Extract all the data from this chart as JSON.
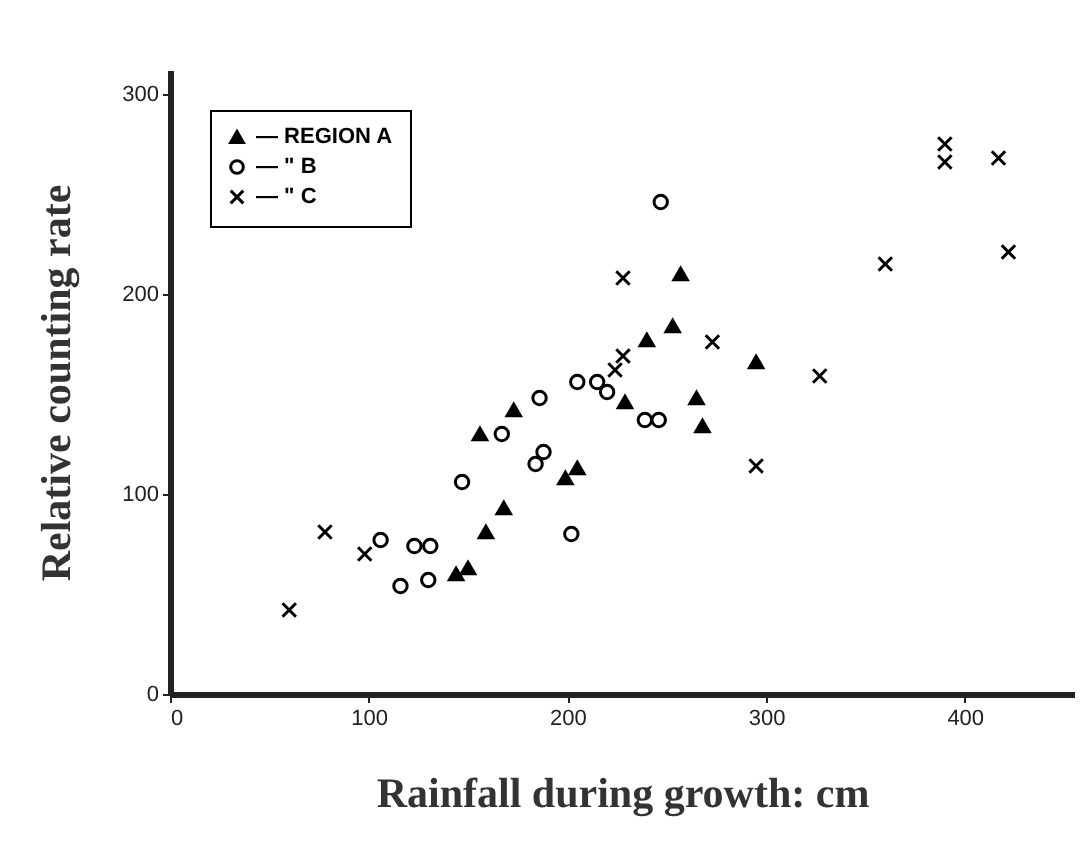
{
  "chart_data": {
    "type": "scatter",
    "xlabel": "Rainfall during growth: cm",
    "ylabel": "Relative counting rate",
    "xlim": [
      0,
      455
    ],
    "ylim": [
      0,
      312
    ],
    "xticks": [
      0,
      100,
      200,
      300,
      400
    ],
    "yticks": [
      0,
      100,
      200,
      300
    ],
    "grid": false,
    "legend": "top left",
    "series": [
      {
        "name": "— REGION A",
        "color": "#000000",
        "marker": "triangle",
        "x": [
          144,
          150,
          159,
          168,
          156,
          173,
          199,
          205,
          229,
          240,
          253,
          257,
          265,
          268,
          295
        ],
        "values": [
          60,
          63,
          81,
          93,
          130,
          142,
          108,
          113,
          146,
          177,
          184,
          210,
          148,
          134,
          166
        ]
      },
      {
        "name": "— \" B",
        "color": "#000000",
        "marker": "circle",
        "x": [
          106,
          116,
          123,
          131,
          130,
          147,
          167,
          186,
          188,
          184,
          202,
          205,
          215,
          220,
          239,
          246,
          247
        ],
        "values": [
          77,
          54,
          74,
          74,
          57,
          106,
          130,
          148,
          121,
          115,
          80,
          156,
          156,
          151,
          137,
          137,
          246
        ]
      },
      {
        "name": "— \" C",
        "color": "#000000",
        "marker": "cross",
        "x": [
          60,
          78,
          98,
          224,
          228,
          228,
          273,
          295,
          327,
          360,
          390,
          390,
          417,
          422
        ],
        "values": [
          42,
          81,
          70,
          162,
          169,
          208,
          176,
          114,
          159,
          215,
          275,
          266,
          268,
          221
        ]
      }
    ]
  }
}
